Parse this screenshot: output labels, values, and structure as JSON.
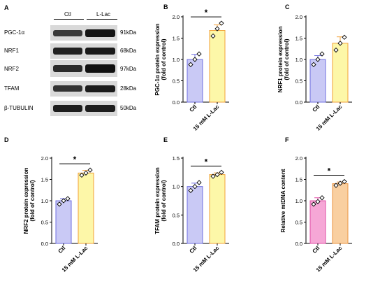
{
  "panels": {
    "A": "A",
    "B": "B",
    "C": "C",
    "D": "D",
    "E": "E",
    "F": "F"
  },
  "blot": {
    "lanes": [
      "Ctl",
      "L-Lac"
    ],
    "rows": [
      {
        "protein": "PGC-1α",
        "kda": "91kDa"
      },
      {
        "protein": "NRF1",
        "kda": "68kDa"
      },
      {
        "protein": "NRF2",
        "kda": "97kDa"
      },
      {
        "protein": "TFAM",
        "kda": "28kDa"
      },
      {
        "protein": "β-TUBULIN",
        "kda": "50kDa"
      }
    ]
  },
  "colors": {
    "ctl_fill": "#c9c9f5",
    "ctl_edge": "#6f6fe0",
    "lac_fill": "#fdf7a8",
    "lac_edge": "#f2a23a",
    "f_ctl_fill": "#f6a7d6",
    "f_ctl_edge": "#e04ca6",
    "f_lac_fill": "#f9cfa0",
    "f_lac_edge": "#ec9540"
  },
  "chart_data": [
    {
      "id": "B",
      "type": "bar",
      "categories": [
        "Ctl",
        "15 mM L-Lac"
      ],
      "values": [
        1.0,
        1.68
      ],
      "errors": [
        0.12,
        0.13
      ],
      "points": [
        [
          0.88,
          1.0,
          1.13
        ],
        [
          1.55,
          1.72,
          1.85
        ]
      ],
      "ylabel": [
        "PGC-1α protein expression",
        "(fold of control)"
      ],
      "ylim": [
        0,
        2.0
      ],
      "yticks": [
        "0.0",
        "0.5",
        "1.0",
        "1.5",
        "2.0"
      ],
      "significance": "*"
    },
    {
      "id": "C",
      "type": "bar",
      "categories": [
        "Ctl",
        "15 mM L-Lac"
      ],
      "values": [
        1.0,
        1.38
      ],
      "errors": [
        0.09,
        0.15
      ],
      "points": [
        [
          0.88,
          1.0,
          1.13
        ],
        [
          1.22,
          1.38,
          1.52
        ]
      ],
      "ylabel": [
        "NRF1 protein expression",
        "(fold of control)"
      ],
      "ylim": [
        0,
        2.0
      ],
      "yticks": [
        "0.0",
        "0.5",
        "1.0",
        "1.5",
        "2.0"
      ],
      "significance": ""
    },
    {
      "id": "D",
      "type": "bar",
      "categories": [
        "Ctl",
        "15 mM L-Lac"
      ],
      "values": [
        1.0,
        1.65
      ],
      "errors": [
        0.05,
        0.06
      ],
      "points": [
        [
          0.92,
          1.0,
          1.05
        ],
        [
          1.6,
          1.65,
          1.72
        ]
      ],
      "ylabel": [
        "NRF2 protein expression",
        "(fold of control)"
      ],
      "ylim": [
        0,
        2.0
      ],
      "yticks": [
        "0.0",
        "0.5",
        "1.0",
        "1.5",
        "2.0"
      ],
      "significance": "*"
    },
    {
      "id": "E",
      "type": "bar",
      "categories": [
        "Ctl",
        "15 mM L-Lac"
      ],
      "values": [
        1.0,
        1.21
      ],
      "errors": [
        0.06,
        0.03
      ],
      "points": [
        [
          0.93,
          1.0,
          1.07
        ],
        [
          1.18,
          1.21,
          1.25
        ]
      ],
      "ylabel": [
        "TFAM protein expression",
        "(fold of control)"
      ],
      "ylim": [
        0,
        1.5
      ],
      "yticks": [
        "0.0",
        "0.5",
        "1.0",
        "1.5"
      ],
      "significance": "*"
    },
    {
      "id": "F",
      "type": "bar",
      "categories": [
        "Ctl",
        "15 mM L-Lac"
      ],
      "values": [
        1.0,
        1.4
      ],
      "errors": [
        0.07,
        0.04
      ],
      "points": [
        [
          0.92,
          0.98,
          1.07
        ],
        [
          1.36,
          1.41,
          1.45
        ]
      ],
      "ylabel": [
        "Relative mtDNA content"
      ],
      "ylim": [
        0,
        2.0
      ],
      "yticks": [
        "0.0",
        "0.5",
        "1.0",
        "1.5",
        "2.0"
      ],
      "significance": "*"
    }
  ]
}
